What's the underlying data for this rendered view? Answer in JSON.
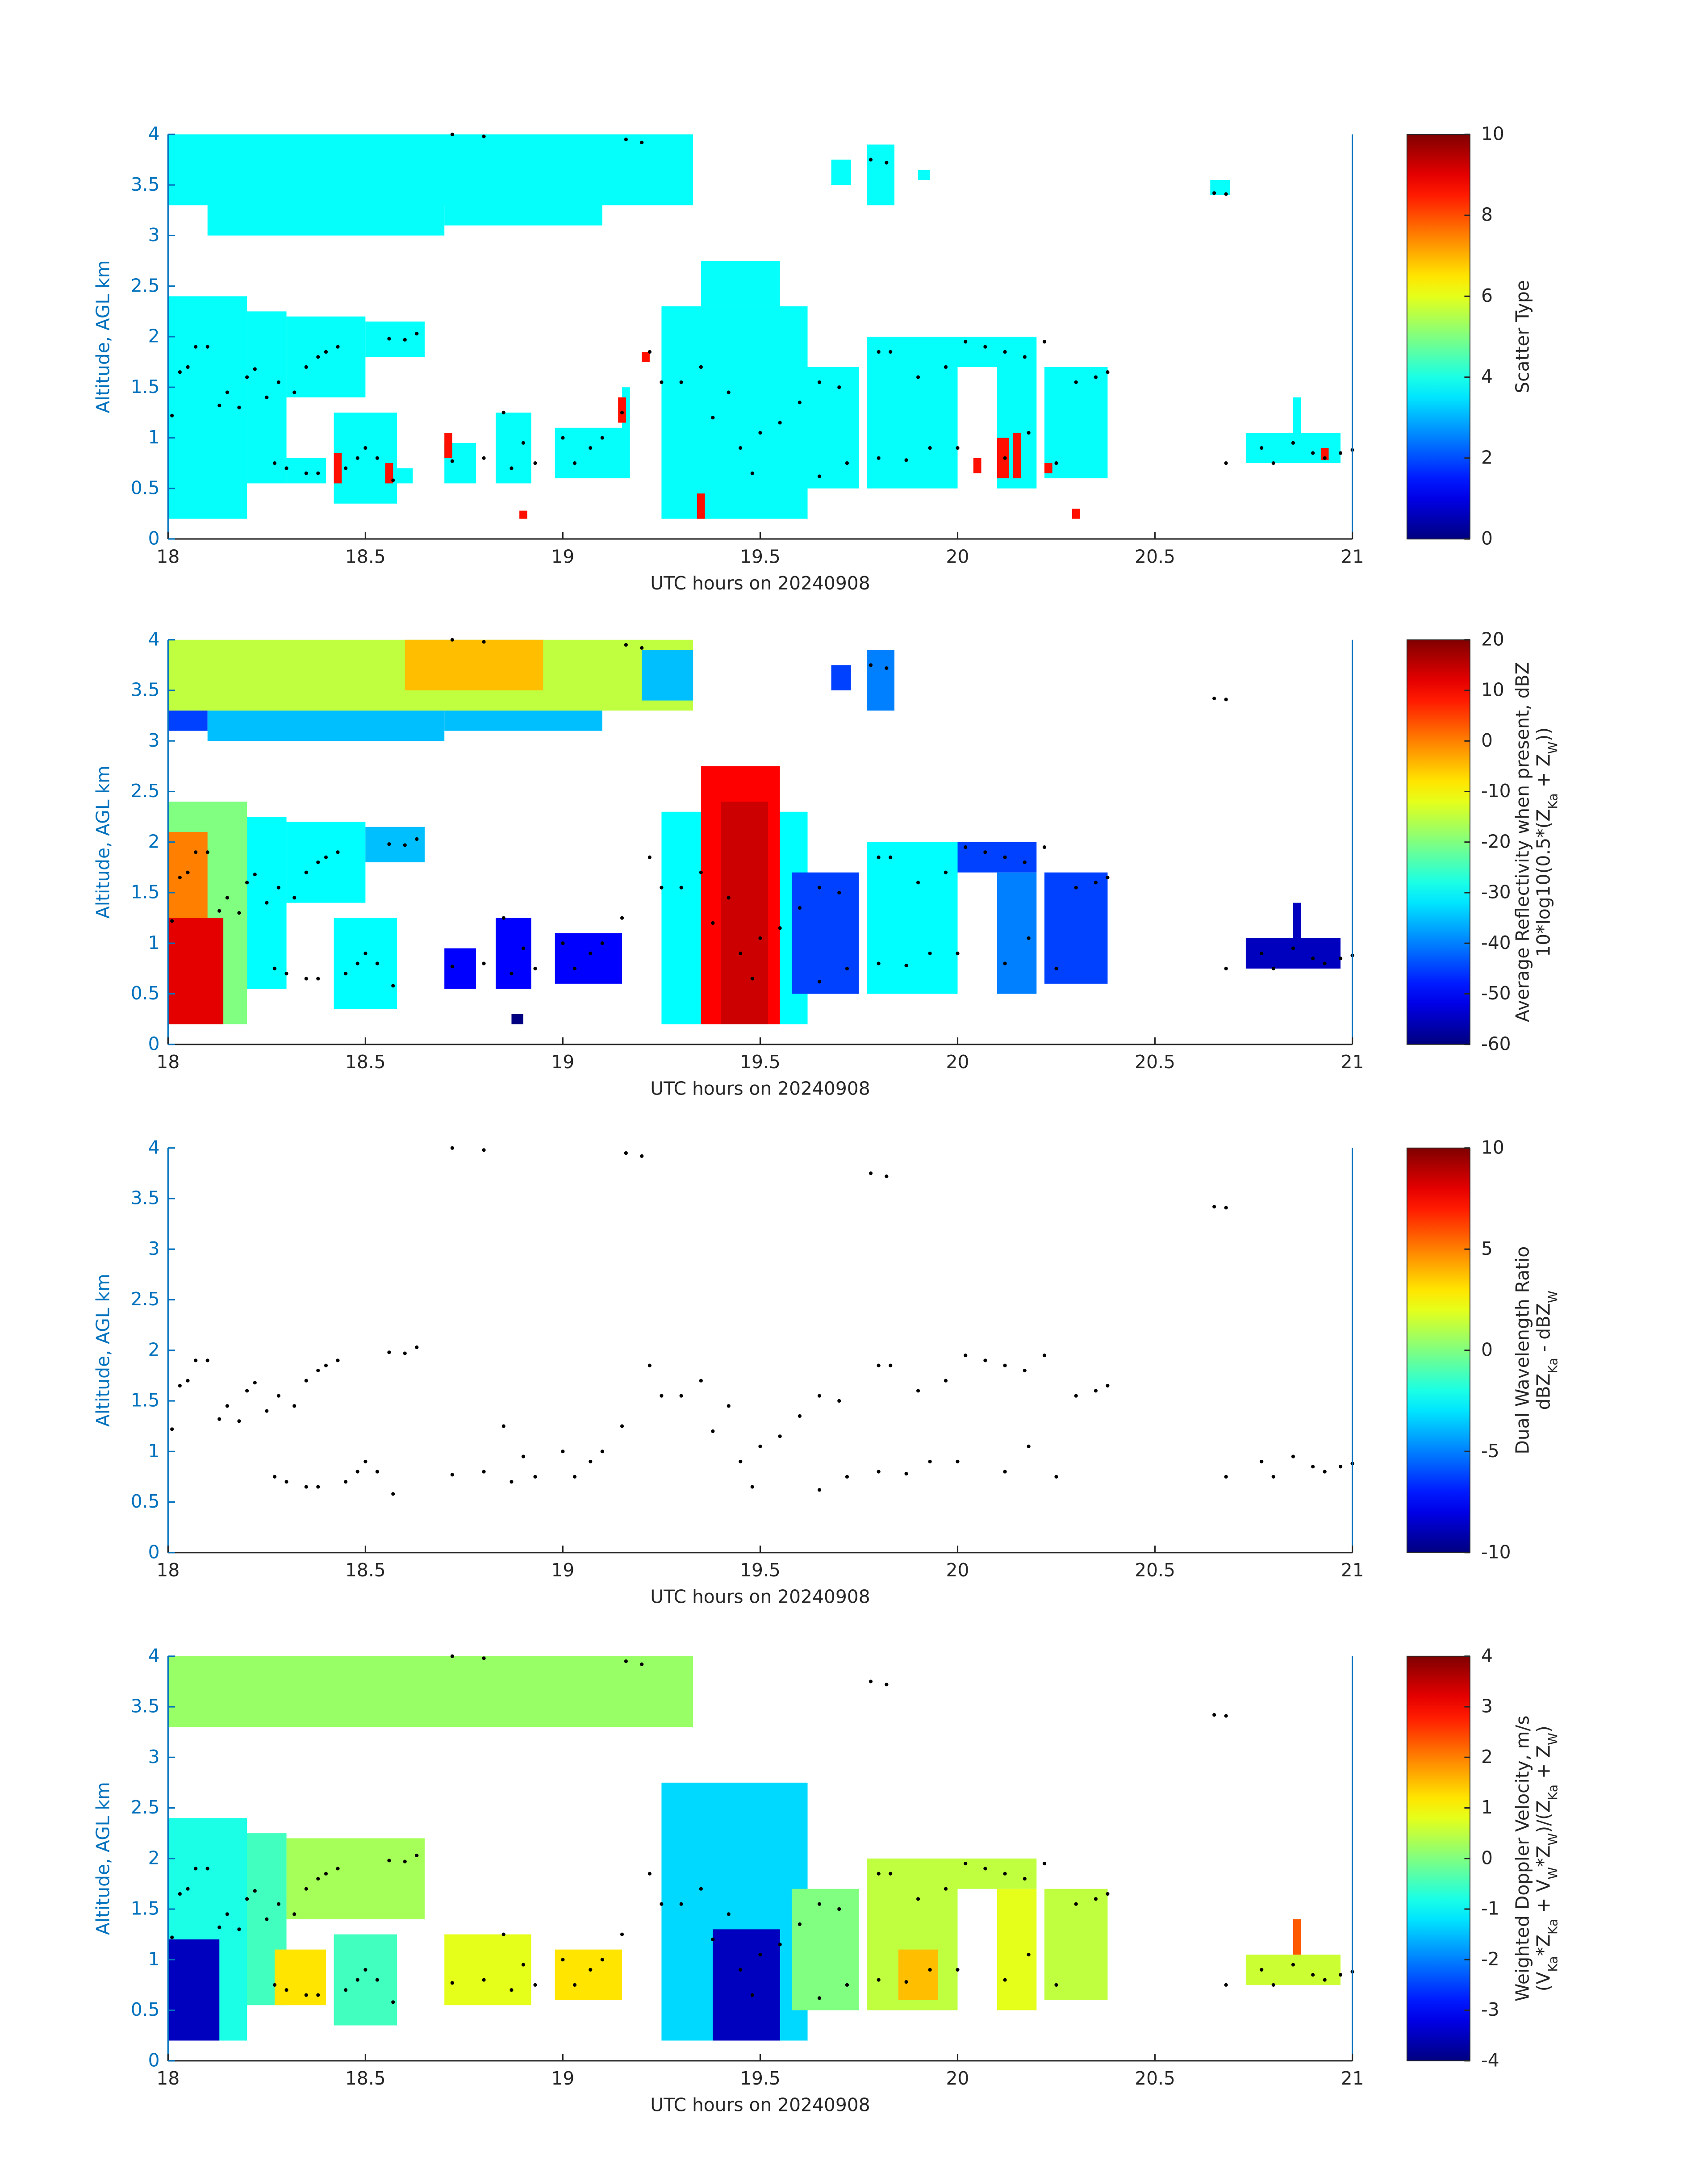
{
  "chart_data": [
    {
      "type": "heatmap",
      "xlabel": "UTC hours on 20240908",
      "ylabel": "Altitude, AGL km",
      "xlim": [
        18,
        21
      ],
      "ylim": [
        0,
        4
      ],
      "xticks": [
        18,
        18.5,
        19,
        19.5,
        20,
        20.5,
        21
      ],
      "yticks": [
        0,
        0.5,
        1,
        1.5,
        2,
        2.5,
        3,
        3.5,
        4
      ],
      "colorbar": {
        "label": [
          "Scatter Type"
        ],
        "clim": [
          0,
          10
        ],
        "ticks": [
          0,
          2,
          4,
          6,
          8,
          10
        ]
      },
      "cells": [
        [
          18,
          19.33,
          3.3,
          4,
          3.8
        ],
        [
          18.1,
          18.7,
          3,
          3.3,
          3.8
        ],
        [
          18.7,
          19.1,
          3.1,
          3.3,
          3.8
        ],
        [
          19.68,
          19.73,
          3.5,
          3.75,
          3.8
        ],
        [
          19.77,
          19.84,
          3.3,
          3.9,
          3.8
        ],
        [
          19.9,
          19.93,
          3.55,
          3.65,
          3.8
        ],
        [
          20.64,
          20.69,
          3.4,
          3.55,
          3.8
        ],
        [
          18,
          18.2,
          0.2,
          2.4,
          3.8
        ],
        [
          18.2,
          18.3,
          0.55,
          2.25,
          3.8
        ],
        [
          18.3,
          18.5,
          1.4,
          2.2,
          3.8
        ],
        [
          18.5,
          18.65,
          1.8,
          2.15,
          3.8
        ],
        [
          18.3,
          18.4,
          0.55,
          0.8,
          3.8
        ],
        [
          18.42,
          18.58,
          0.35,
          1.25,
          3.8
        ],
        [
          18.58,
          18.62,
          0.55,
          0.7,
          3.8
        ],
        [
          18.7,
          18.78,
          0.55,
          0.95,
          3.8
        ],
        [
          18.83,
          18.92,
          0.55,
          1.25,
          3.8
        ],
        [
          18.98,
          19.15,
          0.6,
          1.1,
          3.8
        ],
        [
          19.15,
          19.17,
          0.6,
          1.5,
          3.8
        ],
        [
          19.25,
          19.62,
          0.2,
          2.3,
          3.8
        ],
        [
          19.35,
          19.55,
          2.3,
          2.75,
          3.8
        ],
        [
          19.58,
          19.75,
          0.5,
          1.7,
          3.8
        ],
        [
          19.77,
          20,
          0.5,
          2,
          3.8
        ],
        [
          20,
          20.2,
          1.7,
          2,
          3.8
        ],
        [
          20.1,
          20.2,
          0.5,
          1.7,
          3.8
        ],
        [
          20.22,
          20.38,
          0.6,
          1.7,
          3.8
        ],
        [
          20.73,
          20.97,
          0.75,
          1.05,
          3.8
        ],
        [
          20.85,
          20.87,
          1.05,
          1.4,
          3.8
        ],
        [
          18.42,
          18.44,
          0.55,
          0.85,
          8.6
        ],
        [
          18.55,
          18.57,
          0.55,
          0.75,
          8.6
        ],
        [
          18.7,
          18.72,
          0.8,
          1.05,
          8.6
        ],
        [
          18.89,
          18.91,
          0.2,
          0.28,
          8.6
        ],
        [
          19.14,
          19.16,
          1.15,
          1.4,
          8.6
        ],
        [
          19.2,
          19.22,
          1.75,
          1.85,
          8.6
        ],
        [
          19.34,
          19.36,
          0.2,
          0.45,
          8.6
        ],
        [
          20.04,
          20.06,
          0.65,
          0.8,
          8.6
        ],
        [
          20.1,
          20.13,
          0.6,
          1,
          8.6
        ],
        [
          20.14,
          20.16,
          0.6,
          1.05,
          8.6
        ],
        [
          20.22,
          20.24,
          0.65,
          0.75,
          8.6
        ],
        [
          20.29,
          20.31,
          0.2,
          0.3,
          8.6
        ],
        [
          20.92,
          20.94,
          0.78,
          0.9,
          8.6
        ]
      ]
    },
    {
      "type": "heatmap",
      "xlabel": "UTC hours on 20240908",
      "ylabel": "Altitude, AGL km",
      "xlim": [
        18,
        21
      ],
      "ylim": [
        0,
        4
      ],
      "xticks": [
        18,
        18.5,
        19,
        19.5,
        20,
        20.5,
        21
      ],
      "yticks": [
        0,
        0.5,
        1,
        1.5,
        2,
        2.5,
        3,
        3.5,
        4
      ],
      "colorbar": {
        "label": [
          "Average Reflectivity when present, dBZ",
          "10*log10(0.5*(Z_{Ka} + Z_{W}))"
        ],
        "clim": [
          -60,
          20
        ],
        "ticks": [
          -60,
          -50,
          -40,
          -30,
          -20,
          -10,
          0,
          10,
          20
        ]
      },
      "cells": [
        [
          18,
          19.33,
          3.3,
          4,
          -15
        ],
        [
          18.6,
          18.95,
          3.5,
          4,
          -5
        ],
        [
          18,
          18.1,
          3.1,
          3.3,
          -45
        ],
        [
          18.1,
          18.7,
          3,
          3.3,
          -35
        ],
        [
          18.7,
          19.1,
          3.1,
          3.3,
          -35
        ],
        [
          19.2,
          19.33,
          3.4,
          3.9,
          -35
        ],
        [
          19.68,
          19.73,
          3.5,
          3.75,
          -45
        ],
        [
          19.77,
          19.84,
          3.3,
          3.9,
          -40
        ],
        [
          18,
          18.2,
          0.2,
          2.4,
          -20
        ],
        [
          18,
          18.14,
          0.2,
          1.25,
          12
        ],
        [
          18,
          18.1,
          1.25,
          2.1,
          0
        ],
        [
          18.2,
          18.3,
          0.55,
          2.25,
          -30
        ],
        [
          18.3,
          18.5,
          1.4,
          2.2,
          -30
        ],
        [
          18.5,
          18.65,
          1.8,
          2.15,
          -35
        ],
        [
          18.42,
          18.58,
          0.35,
          1.25,
          -30
        ],
        [
          18.7,
          18.78,
          0.55,
          0.95,
          -50
        ],
        [
          18.83,
          18.92,
          0.55,
          1.25,
          -50
        ],
        [
          18.87,
          18.9,
          0.2,
          0.3,
          -60
        ],
        [
          18.98,
          19.15,
          0.6,
          1.1,
          -50
        ],
        [
          19.25,
          19.62,
          0.2,
          2.3,
          -30
        ],
        [
          19.35,
          19.55,
          0.2,
          2.75,
          10
        ],
        [
          19.4,
          19.52,
          0.2,
          2.4,
          14
        ],
        [
          19.58,
          19.75,
          0.5,
          1.7,
          -45
        ],
        [
          19.77,
          20,
          0.5,
          2,
          -30
        ],
        [
          20,
          20.2,
          1.7,
          2,
          -45
        ],
        [
          20.1,
          20.2,
          0.5,
          1.7,
          -40
        ],
        [
          20.22,
          20.38,
          0.6,
          1.7,
          -45
        ],
        [
          20.73,
          20.97,
          0.75,
          1.05,
          -55
        ],
        [
          20.85,
          20.87,
          1.05,
          1.4,
          -55
        ]
      ]
    },
    {
      "type": "heatmap",
      "xlabel": "UTC hours on 20240908",
      "ylabel": "Altitude, AGL km",
      "xlim": [
        18,
        21
      ],
      "ylim": [
        0,
        4
      ],
      "xticks": [
        18,
        18.5,
        19,
        19.5,
        20,
        20.5,
        21
      ],
      "yticks": [
        0,
        0.5,
        1,
        1.5,
        2,
        2.5,
        3,
        3.5,
        4
      ],
      "colorbar": {
        "label": [
          "Dual Wavelength Ratio",
          "dBZ_{Ka} - dBZ_{W}"
        ],
        "clim": [
          -10,
          10
        ],
        "ticks": [
          -10,
          -5,
          0,
          5,
          10
        ]
      },
      "cells": [],
      "points": {
        "x": [
          18.01,
          18.03,
          18.05,
          18.07,
          18.1,
          18.13,
          18.15,
          18.18,
          18.2,
          18.22,
          18.25,
          18.28,
          18.32,
          18.35,
          18.38,
          18.4,
          18.43,
          18.27,
          18.3,
          18.35,
          18.38,
          18.45,
          18.48,
          18.5,
          18.53,
          18.57,
          18.56,
          18.6,
          18.63,
          18.72,
          18.8,
          18.85,
          18.87,
          18.9,
          18.93,
          19,
          19.03,
          19.07,
          19.1,
          19.15,
          19.22,
          19.25,
          19.3,
          19.35,
          19.38,
          19.42,
          19.45,
          19.48,
          19.5,
          19.55,
          19.6,
          19.65,
          19.7,
          19.65,
          19.72,
          19.8,
          19.8,
          19.83,
          19.87,
          19.9,
          19.93,
          19.97,
          20,
          20.02,
          20.07,
          20.12,
          20.17,
          20.12,
          20.18,
          20.22,
          20.25,
          20.3,
          20.35,
          20.38,
          18.72,
          18.8,
          19.16,
          19.2,
          19.78,
          19.82,
          20.65,
          20.68,
          20.68,
          20.77,
          20.8,
          20.85,
          20.9,
          20.93,
          20.97,
          21
        ],
        "y": [
          1.22,
          1.65,
          1.7,
          1.9,
          1.9,
          1.32,
          1.45,
          1.3,
          1.6,
          1.68,
          1.4,
          1.55,
          1.45,
          1.7,
          1.8,
          1.85,
          1.9,
          0.75,
          0.7,
          0.65,
          0.65,
          0.7,
          0.8,
          0.9,
          0.8,
          0.58,
          1.98,
          1.97,
          2.03,
          0.77,
          0.8,
          1.25,
          0.7,
          0.95,
          0.75,
          1,
          0.75,
          0.9,
          1,
          1.25,
          1.85,
          1.55,
          1.55,
          1.7,
          1.2,
          1.45,
          0.9,
          0.65,
          1.05,
          1.15,
          1.35,
          1.55,
          1.5,
          0.62,
          0.75,
          0.8,
          1.85,
          1.85,
          0.78,
          1.6,
          0.9,
          1.7,
          0.9,
          1.95,
          1.9,
          1.85,
          1.8,
          0.8,
          1.05,
          1.95,
          0.75,
          1.55,
          1.6,
          1.65,
          4,
          3.98,
          3.95,
          3.92,
          3.75,
          3.72,
          3.42,
          3.41,
          0.75,
          0.9,
          0.75,
          0.95,
          0.85,
          0.8,
          0.85,
          0.88
        ]
      }
    },
    {
      "type": "heatmap",
      "xlabel": "UTC hours on 20240908",
      "ylabel": "Altitude, AGL km",
      "xlim": [
        18,
        21
      ],
      "ylim": [
        0,
        4
      ],
      "xticks": [
        18,
        18.5,
        19,
        19.5,
        20,
        20.5,
        21
      ],
      "yticks": [
        0,
        0.5,
        1,
        1.5,
        2,
        2.5,
        3,
        3.5,
        4
      ],
      "colorbar": {
        "label": [
          "Weighted Doppler Velocity, m/s",
          "(V_{Ka}*Z_{Ka} + V_{W}*Z_{W})/(Z_{Ka} + Z_{W})"
        ],
        "clim": [
          -4,
          4
        ],
        "ticks": [
          -4,
          -3,
          -2,
          -1,
          0,
          1,
          2,
          3,
          4
        ]
      },
      "cells": [
        [
          18,
          19.33,
          3.3,
          4,
          0.2
        ],
        [
          18,
          18.2,
          0.2,
          2.4,
          -0.8
        ],
        [
          18,
          18.13,
          0.2,
          1.2,
          -3.5
        ],
        [
          18.2,
          18.3,
          0.55,
          2.25,
          -0.5
        ],
        [
          18.3,
          18.65,
          1.4,
          2.2,
          0.3
        ],
        [
          18.42,
          18.58,
          0.35,
          1.25,
          -0.5
        ],
        [
          18.27,
          18.4,
          0.55,
          1.1,
          1.2
        ],
        [
          18.7,
          18.92,
          0.55,
          1.25,
          0.8
        ],
        [
          18.98,
          19.15,
          0.6,
          1.1,
          1.2
        ],
        [
          19.25,
          19.62,
          0.2,
          2.75,
          -1.3
        ],
        [
          19.38,
          19.55,
          0.2,
          1.3,
          -3.5
        ],
        [
          19.58,
          19.75,
          0.5,
          1.7,
          0
        ],
        [
          19.77,
          20,
          0.5,
          2,
          0.5
        ],
        [
          19.85,
          19.95,
          0.6,
          1.1,
          1.5
        ],
        [
          20,
          20.2,
          1.7,
          2,
          0.5
        ],
        [
          20.1,
          20.2,
          0.5,
          1.7,
          0.8
        ],
        [
          20.22,
          20.38,
          0.6,
          1.7,
          0.5
        ],
        [
          20.73,
          20.97,
          0.75,
          1.05,
          0.6
        ],
        [
          20.85,
          20.87,
          1.05,
          1.4,
          2.3
        ]
      ]
    }
  ]
}
